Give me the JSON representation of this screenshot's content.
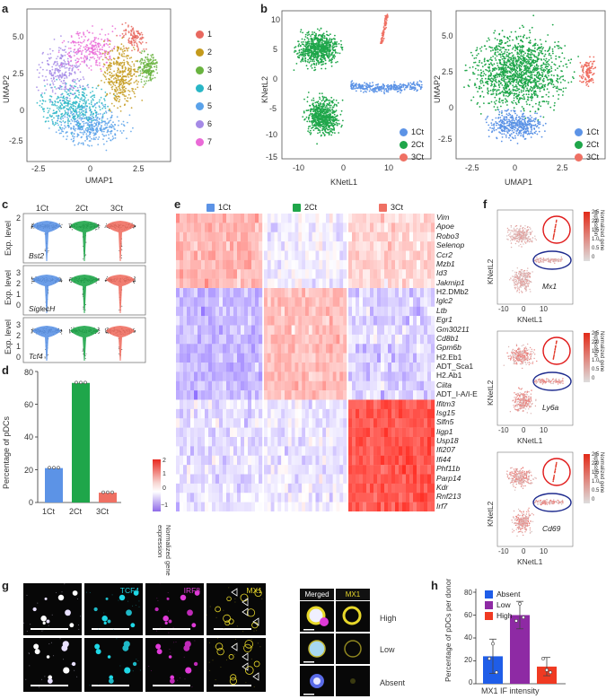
{
  "colors": {
    "c1": "#e8685f",
    "c2": "#c49a1c",
    "c3": "#69b33f",
    "c4": "#29b6c6",
    "c5": "#5aa2ea",
    "c6": "#a58ae6",
    "c7": "#ea6ad7",
    "ct1": "#5c93e6",
    "ct2": "#1fa64a",
    "ct3": "#ef7063",
    "absent": "#1f5de8",
    "low": "#8e2aa4",
    "high": "#f03a22",
    "tcf4": "#1fd8e6",
    "irf8": "#e03ad8",
    "mx1": "#e8d82a"
  },
  "panels": {
    "a": "a",
    "b": "b",
    "c": "c",
    "d": "d",
    "e": "e",
    "f": "f",
    "g": "g",
    "h": "h"
  },
  "panel_a": {
    "xlabel": "UMAP1",
    "ylabel": "UMAP2",
    "xticks": [
      "-2.5",
      "0",
      "2.5"
    ],
    "yticks": [
      "5.0",
      "2.5",
      "0",
      "-2.5"
    ],
    "legend": [
      "1",
      "2",
      "3",
      "4",
      "5",
      "6",
      "7"
    ]
  },
  "panel_b": {
    "left": {
      "xlabel": "KNetL1",
      "ylabel": "KNetL2",
      "xticks": [
        "-10",
        "0",
        "10"
      ],
      "yticks": [
        "10",
        "5",
        "0",
        "-5",
        "-10",
        "-15"
      ]
    },
    "right": {
      "xlabel": "UMAP1",
      "ylabel": "UMAP2",
      "xticks": [
        "-2.5",
        "0",
        "2.5"
      ],
      "yticks": [
        "5.0",
        "2.5",
        "0",
        "-2.5"
      ]
    },
    "legend": [
      "1Ct",
      "2Ct",
      "3Ct"
    ]
  },
  "panel_c": {
    "header": [
      "1Ct",
      "2Ct",
      "3Ct"
    ],
    "ylabel": "Exp. level",
    "genes": [
      "Bst2",
      "SiglecH",
      "Tcf4"
    ],
    "yticks_1": [
      "2"
    ],
    "yticks_2": [
      "3",
      "2",
      "1",
      "0"
    ],
    "yticks_3": [
      "3",
      "2",
      "1",
      "0"
    ]
  },
  "chart_data": {
    "type": "bar",
    "title": "",
    "categories": [
      "1Ct",
      "2Ct",
      "3Ct"
    ],
    "values": [
      21,
      73,
      6
    ],
    "ylabel": "Percentage of pDCs",
    "yticks": [
      "0",
      "20",
      "40",
      "60",
      "80"
    ],
    "ylim": [
      0,
      80
    ]
  },
  "panel_e": {
    "header": [
      "1Ct",
      "2Ct",
      "3Ct"
    ],
    "colorbar_title": "Normalized gene expression",
    "colorbar_ticks": [
      "2",
      "1",
      "0",
      "−1"
    ],
    "genes": [
      "Vim",
      "Apoe",
      "Robo3",
      "Selenop",
      "Ccr2",
      "Mzb1",
      "Id3",
      "Jakmip1",
      "H2.DMb2",
      "Iglc2",
      "Ltb",
      "Egr1",
      "Gm30211",
      "Cd8b1",
      "Gpm6b",
      "H2.Eb1",
      "ADT_Sca1",
      "H2.Ab1",
      "Ciita",
      "ADT_I-A/I-E",
      "Ifitm3",
      "Isg15",
      "Slfn5",
      "Iigp1",
      "Usp18",
      "Ifi207",
      "Ifi44",
      "Phf11b",
      "Parp14",
      "Kdr",
      "Rnf213",
      "Irf7"
    ]
  },
  "panel_f": {
    "plots": [
      "Mx1",
      "Ly6a",
      "Cd69"
    ],
    "xlabel": "KNetL1",
    "ylabel": "KNetL2",
    "xticks": [
      "-10",
      "0",
      "10"
    ],
    "colorbar_title": "Normalized gene expression",
    "colorbar_ticks": [
      "2.5",
      "2.0",
      "1.5",
      "1.0",
      "0.5",
      "0"
    ]
  },
  "panel_g": {
    "channels": [
      "TCF4",
      "IRF8",
      "MX1"
    ],
    "zoom_header": [
      "Merged",
      "MX1"
    ],
    "rows": [
      "High",
      "Low",
      "Absent"
    ]
  },
  "panel_h": {
    "ylabel": "Percentage of pDCs per donor",
    "xlabel": "MX1 IF intensity",
    "legend": [
      "Absent",
      "Low",
      "High"
    ],
    "yticks": [
      "0",
      "20",
      "40",
      "60",
      "80"
    ],
    "means": [
      24,
      60,
      15
    ],
    "errors": [
      15,
      12,
      8
    ],
    "points": [
      [
        22,
        35,
        10
      ],
      [
        55,
        70,
        58
      ],
      [
        22,
        12,
        10
      ]
    ]
  }
}
